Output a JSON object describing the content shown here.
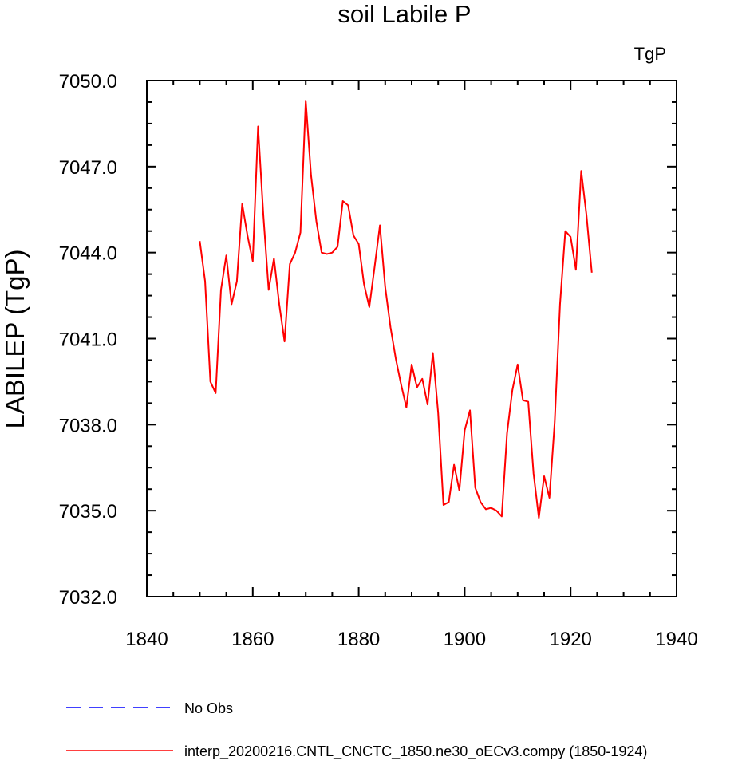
{
  "chart_data": {
    "type": "line",
    "title": "soil Labile P",
    "units_label": "TgP",
    "xlabel": "",
    "ylabel": "LABILEP  (TgP)",
    "xlim": [
      1840,
      1940
    ],
    "ylim": [
      7032.0,
      7050.0
    ],
    "xticks": [
      "1840",
      "1860",
      "1880",
      "1900",
      "1920",
      "1940"
    ],
    "yticks": [
      "7032.0",
      "7035.0",
      "7038.0",
      "7041.0",
      "7044.0",
      "7047.0",
      "7050.0"
    ],
    "grid": false,
    "legend_position": "bottom",
    "series": [
      {
        "name": "interp_20200216.CNTL_CNCTC_1850.ne30_oECv3.compy (1850-1924)",
        "color": "#ff0000",
        "style": "solid",
        "x": [
          1850,
          1851,
          1852,
          1853,
          1854,
          1855,
          1856,
          1857,
          1858,
          1859,
          1860,
          1861,
          1862,
          1863,
          1864,
          1865,
          1866,
          1867,
          1868,
          1869,
          1870,
          1871,
          1872,
          1873,
          1874,
          1875,
          1876,
          1877,
          1878,
          1879,
          1880,
          1881,
          1882,
          1883,
          1884,
          1885,
          1886,
          1887,
          1888,
          1889,
          1890,
          1891,
          1892,
          1893,
          1894,
          1895,
          1896,
          1897,
          1898,
          1899,
          1900,
          1901,
          1902,
          1903,
          1904,
          1905,
          1906,
          1907,
          1908,
          1909,
          1910,
          1911,
          1912,
          1913,
          1914,
          1915,
          1916,
          1917,
          1918,
          1919,
          1920,
          1921,
          1922,
          1923,
          1924
        ],
        "values": [
          7044.4,
          7043.0,
          7039.5,
          7039.1,
          7042.7,
          7043.9,
          7042.2,
          7043.0,
          7045.7,
          7044.6,
          7043.7,
          7048.4,
          7045.3,
          7042.7,
          7043.8,
          7042.2,
          7040.9,
          7043.6,
          7044.0,
          7044.7,
          7049.3,
          7046.7,
          7045.1,
          7044.0,
          7043.95,
          7044.0,
          7044.2,
          7045.8,
          7045.65,
          7044.6,
          7044.3,
          7042.9,
          7042.1,
          7043.5,
          7044.95,
          7042.8,
          7041.4,
          7040.3,
          7039.4,
          7038.6,
          7040.1,
          7039.3,
          7039.6,
          7038.7,
          7040.5,
          7038.4,
          7035.2,
          7035.3,
          7036.6,
          7035.7,
          7037.8,
          7038.5,
          7035.8,
          7035.3,
          7035.05,
          7035.1,
          7035.0,
          7034.8,
          7037.7,
          7039.2,
          7040.1,
          7038.85,
          7038.8,
          7036.3,
          7034.75,
          7036.2,
          7035.45,
          7038.1,
          7042.2,
          7044.75,
          7044.55,
          7043.4,
          7046.85,
          7045.3,
          7043.3
        ]
      },
      {
        "name": "No Obs",
        "color": "#0000ff",
        "style": "dashed",
        "x": [],
        "values": []
      }
    ]
  }
}
